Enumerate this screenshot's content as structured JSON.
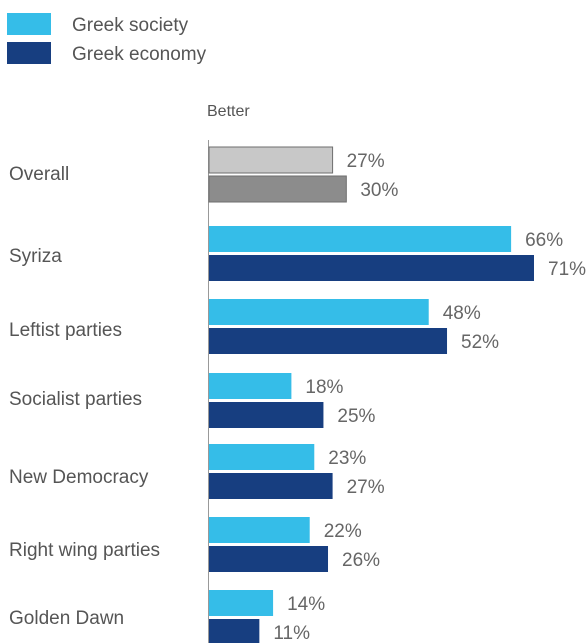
{
  "chart_data": {
    "type": "bar",
    "orientation": "horizontal",
    "axis_title": "Better",
    "categories": [
      "Overall",
      "Syriza",
      "Leftist parties",
      "Socialist parties",
      "New Democracy",
      "Right wing parties",
      "Golden Dawn"
    ],
    "series": [
      {
        "name": "Greek society",
        "color": "#35BDE8",
        "values": [
          27,
          66,
          48,
          18,
          23,
          22,
          14
        ],
        "labels": [
          "27%",
          "66%",
          "48%",
          "18%",
          "23%",
          "22%",
          "14%"
        ]
      },
      {
        "name": "Greek economy",
        "color": "#173E80",
        "values": [
          30,
          71,
          52,
          25,
          27,
          26,
          11
        ],
        "labels": [
          "30%",
          "71%",
          "52%",
          "25%",
          "27%",
          "26%",
          "11%"
        ]
      }
    ],
    "overall_colors": [
      "#C8C8C8",
      "#8C8C8C"
    ],
    "xlim": [
      0,
      71
    ],
    "grid": false,
    "legend": "top-left"
  }
}
